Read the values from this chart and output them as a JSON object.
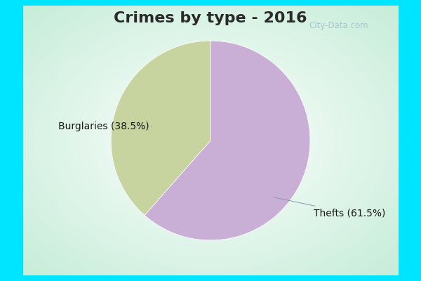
{
  "title": "Crimes by type - 2016",
  "slices": [
    {
      "label": "Thefts (61.5%)",
      "value": 61.5,
      "color": "#c9aed6"
    },
    {
      "label": "Burglaries (38.5%)",
      "value": 38.5,
      "color": "#c8d4a0"
    }
  ],
  "border_color": "#00e5ff",
  "border_thickness": 8,
  "bg_center": "#ffffff",
  "bg_edge": "#c8eed8",
  "title_fontsize": 16,
  "title_color": "#2a2a2a",
  "label_fontsize": 10,
  "label_color": "#1a1a1a",
  "watermark": "City-Data.com",
  "watermark_color": "#a0bfd0",
  "startangle": 90
}
